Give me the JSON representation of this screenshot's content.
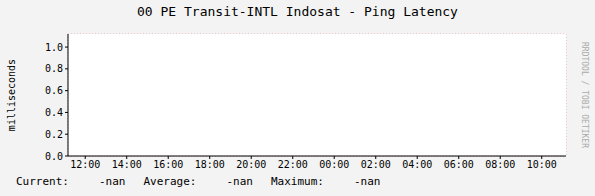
{
  "chart_data": {
    "type": "line",
    "title": "00 PE Transit-INTL Indosat - Ping Latency",
    "y_label": "milliseconds",
    "x": [
      12,
      14,
      16,
      18,
      20,
      22,
      24,
      26,
      28,
      30,
      32,
      34
    ],
    "values": [
      null,
      null,
      null,
      null,
      null,
      null,
      null,
      null,
      null,
      null,
      null,
      null
    ],
    "color": "#cc0000",
    "xlim": [
      11.17,
      35.17
    ],
    "xticks": [
      {
        "value": 12,
        "label": "12:00"
      },
      {
        "value": 14,
        "label": "14:00"
      },
      {
        "value": 16,
        "label": "16:00"
      },
      {
        "value": 18,
        "label": "18:00"
      },
      {
        "value": 20,
        "label": "20:00"
      },
      {
        "value": 22,
        "label": "22:00"
      },
      {
        "value": 24,
        "label": "00:00"
      },
      {
        "value": 26,
        "label": "02:00"
      },
      {
        "value": 28,
        "label": "04:00"
      },
      {
        "value": 30,
        "label": "06:00"
      },
      {
        "value": 32,
        "label": "08:00"
      },
      {
        "value": 34,
        "label": "10:00"
      }
    ],
    "ylim": [
      0,
      1.12
    ],
    "yticks": [
      {
        "value": 0,
        "label": "0.0"
      },
      {
        "value": 0.2,
        "label": "0.2"
      },
      {
        "value": 0.4,
        "label": "0.4"
      },
      {
        "value": 0.6,
        "label": "0.6"
      },
      {
        "value": 0.8,
        "label": "0.8"
      },
      {
        "value": 1,
        "label": "1.0"
      }
    ],
    "grid": true,
    "summary": [
      {
        "label": "Current:",
        "value": "-nan"
      },
      {
        "label": "Average:",
        "value": "-nan"
      },
      {
        "label": "Maximum:",
        "value": "-nan"
      }
    ],
    "annotations": [
      "RRDTOOL / TOBI OETIKER"
    ]
  }
}
